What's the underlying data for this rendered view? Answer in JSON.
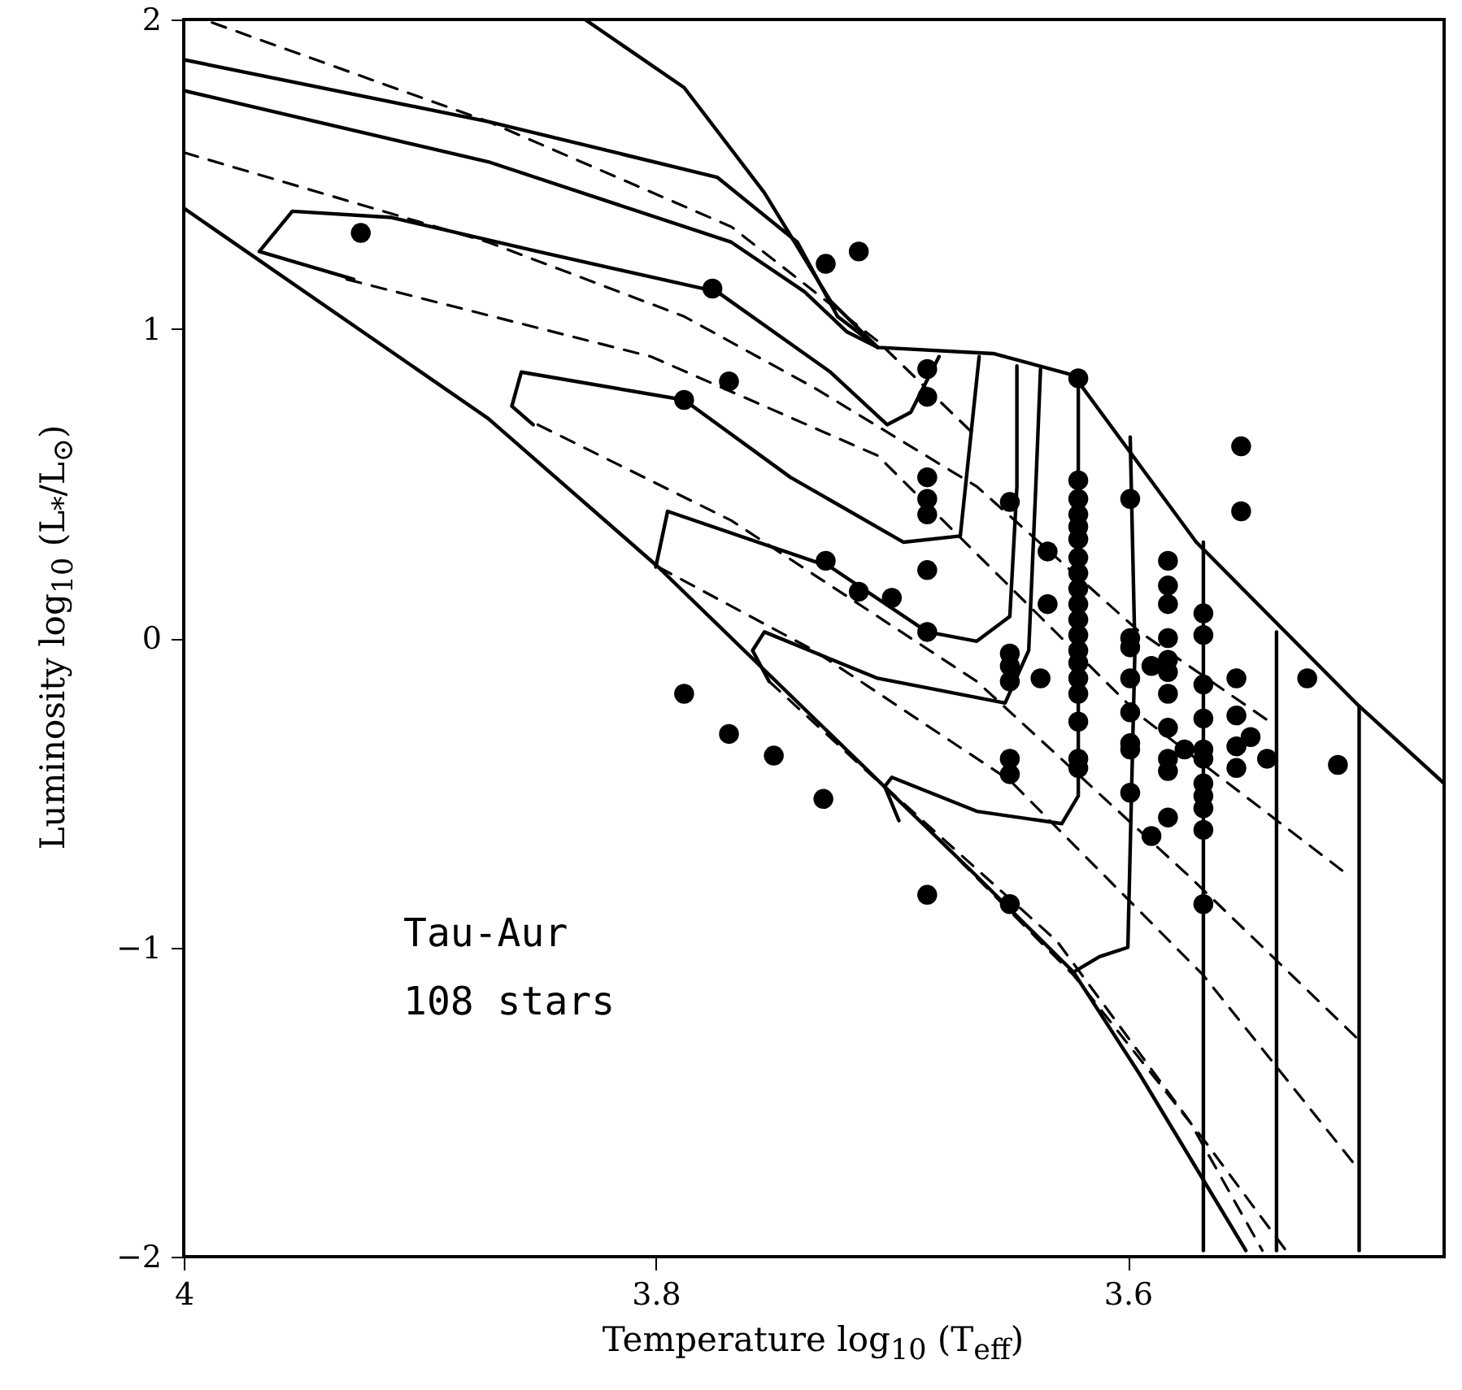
{
  "chart_data": {
    "type": "scatter",
    "xlabel": "Temperature log$_{10}$ (T$_{eff}$)",
    "ylabel": "Luminosity log$_{10}$ (L$_{*}$/L$_{⊙}$)",
    "xlim": [
      4,
      3.466
    ],
    "ylim": [
      -2,
      2
    ],
    "xticks": [
      4,
      3.8,
      3.6
    ],
    "yticks": [
      -2,
      -1,
      0,
      1,
      2
    ],
    "grid": false,
    "annotations": [
      "Tau-Aur",
      "108 stars"
    ],
    "series": [
      {
        "type": "line",
        "line_style": "solid",
        "color": "#000000",
        "x": [
          4,
          3.871,
          3.799,
          3.664,
          3.623,
          3.595,
          3.55
        ],
        "values": [
          1.39,
          0.71,
          0.23,
          -0.77,
          -1.08,
          -1.41,
          -1.98
        ]
      },
      {
        "type": "line",
        "line_style": "solid",
        "color": "#000000",
        "x": [
          3.83,
          3.788,
          3.754,
          3.726,
          3.706,
          3.657,
          3.623,
          3.571,
          3.502,
          3.466
        ],
        "values": [
          2.0,
          1.78,
          1.44,
          1.09,
          0.94,
          0.92,
          0.85,
          0.31,
          -0.22,
          -0.47
        ]
      },
      {
        "type": "line",
        "line_style": "solid",
        "color": "#000000",
        "x": [
          4,
          3.871,
          3.774,
          3.74,
          3.723,
          3.706
        ],
        "values": [
          1.87,
          1.67,
          1.49,
          1.28,
          1.04,
          0.94
        ]
      },
      {
        "type": "line",
        "line_style": "solid",
        "color": "#000000",
        "x": [
          4,
          3.871,
          3.768,
          3.737,
          3.719,
          3.706
        ],
        "values": [
          1.77,
          1.54,
          1.28,
          1.12,
          0.99,
          0.94
        ]
      },
      {
        "type": "line",
        "line_style": "solid",
        "color": "#000000",
        "x": [
          3.928,
          3.968,
          3.954,
          3.912,
          3.85,
          3.774,
          3.726,
          3.702,
          3.692,
          3.68
        ],
        "values": [
          1.16,
          1.25,
          1.38,
          1.36,
          1.25,
          1.12,
          0.86,
          0.69,
          0.73,
          0.91
        ]
      },
      {
        "type": "line",
        "line_style": "solid",
        "color": "#000000",
        "x": [
          3.852,
          3.861,
          3.857,
          3.788,
          3.743,
          3.695,
          3.671,
          3.663
        ],
        "values": [
          0.69,
          0.75,
          0.86,
          0.77,
          0.52,
          0.31,
          0.33,
          0.91
        ]
      },
      {
        "type": "line",
        "line_style": "solid",
        "color": "#000000",
        "x": [
          3.8,
          3.795,
          3.726,
          3.685,
          3.664,
          3.65,
          3.647,
          3.647
        ],
        "values": [
          0.23,
          0.41,
          0.23,
          0.02,
          -0.01,
          0.07,
          0.49,
          0.88
        ]
      },
      {
        "type": "line",
        "line_style": "solid",
        "color": "#000000",
        "x": [
          3.752,
          3.759,
          3.754,
          3.706,
          3.652,
          3.642,
          3.639,
          3.637
        ],
        "values": [
          -0.14,
          -0.04,
          0.02,
          -0.13,
          -0.21,
          -0.04,
          0.49,
          0.87
        ]
      },
      {
        "type": "line",
        "line_style": "solid",
        "color": "#000000",
        "x": [
          3.697,
          3.703,
          3.7,
          3.664,
          3.628,
          3.621,
          3.621
        ],
        "values": [
          -0.59,
          -0.48,
          -0.45,
          -0.56,
          -0.6,
          -0.51,
          0.84
        ]
      },
      {
        "type": "line",
        "line_style": "solid",
        "color": "#000000",
        "x": [
          3.623,
          3.612,
          3.6,
          3.597,
          3.599
        ],
        "values": [
          -1.08,
          -1.03,
          -1.0,
          -0.04,
          0.65
        ]
      },
      {
        "type": "line",
        "line_style": "solid",
        "color": "#000000",
        "x": [
          3.568,
          3.568
        ],
        "values": [
          0.31,
          -1.98
        ]
      },
      {
        "type": "line",
        "line_style": "solid",
        "color": "#000000",
        "x": [
          3.537,
          3.537
        ],
        "values": [
          0.02,
          -1.98
        ]
      },
      {
        "type": "line",
        "line_style": "solid",
        "color": "#000000",
        "x": [
          3.502,
          3.502
        ],
        "values": [
          -0.22,
          -1.98
        ]
      },
      {
        "type": "line",
        "line_style": "dashed",
        "color": "#000000",
        "x": [
          3.988,
          3.871,
          3.768,
          3.706,
          3.664
        ],
        "values": [
          1.99,
          1.67,
          1.33,
          0.96,
          0.65
        ]
      },
      {
        "type": "line",
        "line_style": "dashed",
        "color": "#000000",
        "x": [
          4,
          3.871,
          3.788,
          3.733,
          3.664,
          3.595,
          3.54
        ],
        "values": [
          1.57,
          1.28,
          1.04,
          0.81,
          0.49,
          0.02,
          -0.27
        ]
      },
      {
        "type": "line",
        "line_style": "dashed",
        "color": "#000000",
        "x": [
          3.931,
          3.802,
          3.706,
          3.595,
          3.506
        ],
        "values": [
          1.16,
          0.91,
          0.59,
          -0.25,
          -0.77
        ]
      },
      {
        "type": "line",
        "line_style": "dashed",
        "color": "#000000",
        "x": [
          3.85,
          3.768,
          3.664,
          3.574,
          3.502
        ],
        "values": [
          0.69,
          0.38,
          -0.14,
          -0.77,
          -1.3
        ]
      },
      {
        "type": "line",
        "line_style": "dashed",
        "color": "#000000",
        "x": [
          3.799,
          3.733,
          3.65,
          3.568,
          3.502
        ],
        "values": [
          0.23,
          -0.04,
          -0.46,
          -1.09,
          -1.72
        ]
      },
      {
        "type": "line",
        "line_style": "dashed",
        "color": "#000000",
        "x": [
          3.752,
          3.692,
          3.623,
          3.568,
          3.533
        ],
        "values": [
          -0.14,
          -0.56,
          -1.09,
          -1.62,
          -1.98
        ]
      },
      {
        "type": "line",
        "line_style": "dashed",
        "color": "#000000",
        "x": [
          3.703,
          3.63,
          3.574,
          3.543
        ],
        "values": [
          -0.48,
          -0.98,
          -1.56,
          -1.98
        ]
      },
      {
        "marker": "circle",
        "color": "#000000",
        "x": [
          3.925,
          3.776,
          3.769,
          3.788,
          3.728,
          3.714,
          3.685,
          3.685,
          3.685,
          3.685,
          3.685,
          3.685,
          3.685,
          3.728,
          3.714,
          3.7,
          3.788,
          3.769,
          3.75,
          3.729,
          3.685,
          3.65,
          3.65,
          3.634,
          3.634,
          3.65,
          3.65,
          3.65,
          3.637,
          3.65,
          3.65,
          3.621,
          3.621,
          3.621,
          3.621,
          3.621,
          3.621,
          3.621,
          3.621,
          3.621,
          3.621,
          3.621,
          3.621,
          3.621,
          3.621,
          3.621,
          3.621,
          3.621,
          3.621,
          3.621,
          3.599,
          3.599,
          3.599,
          3.599,
          3.599,
          3.599,
          3.599,
          3.599,
          3.59,
          3.59,
          3.583,
          3.583,
          3.583,
          3.583,
          3.583,
          3.583,
          3.583,
          3.583,
          3.583,
          3.583,
          3.583,
          3.576,
          3.568,
          3.568,
          3.568,
          3.568,
          3.568,
          3.568,
          3.568,
          3.568,
          3.568,
          3.568,
          3.568,
          3.554,
          3.554,
          3.554,
          3.554,
          3.552,
          3.552,
          3.548,
          3.541,
          3.524,
          3.511
        ],
        "values": [
          1.31,
          1.13,
          0.83,
          0.77,
          1.21,
          1.25,
          0.87,
          0.78,
          0.52,
          0.45,
          0.4,
          0.22,
          0.02,
          0.25,
          0.15,
          0.13,
          -0.18,
          -0.31,
          -0.38,
          -0.52,
          -0.83,
          -0.86,
          0.44,
          0.28,
          0.11,
          -0.05,
          -0.09,
          -0.14,
          -0.13,
          -0.39,
          -0.44,
          0.84,
          0.51,
          0.45,
          0.4,
          0.36,
          0.32,
          0.26,
          0.21,
          0.16,
          0.11,
          0.06,
          0.01,
          -0.04,
          -0.08,
          -0.13,
          -0.18,
          -0.27,
          -0.39,
          -0.42,
          0.45,
          0,
          -0.03,
          -0.13,
          -0.24,
          -0.34,
          -0.36,
          -0.5,
          -0.64,
          -0.09,
          0.25,
          0.17,
          0.11,
          0,
          -0.07,
          -0.11,
          -0.18,
          -0.29,
          -0.39,
          -0.43,
          -0.58,
          -0.36,
          0.08,
          0.01,
          -0.15,
          -0.26,
          -0.36,
          -0.39,
          -0.47,
          -0.51,
          -0.55,
          -0.62,
          -0.86,
          -0.13,
          -0.25,
          -0.35,
          -0.42,
          0.62,
          0.41,
          -0.32,
          -0.39,
          -0.13,
          -0.41
        ]
      }
    ]
  }
}
